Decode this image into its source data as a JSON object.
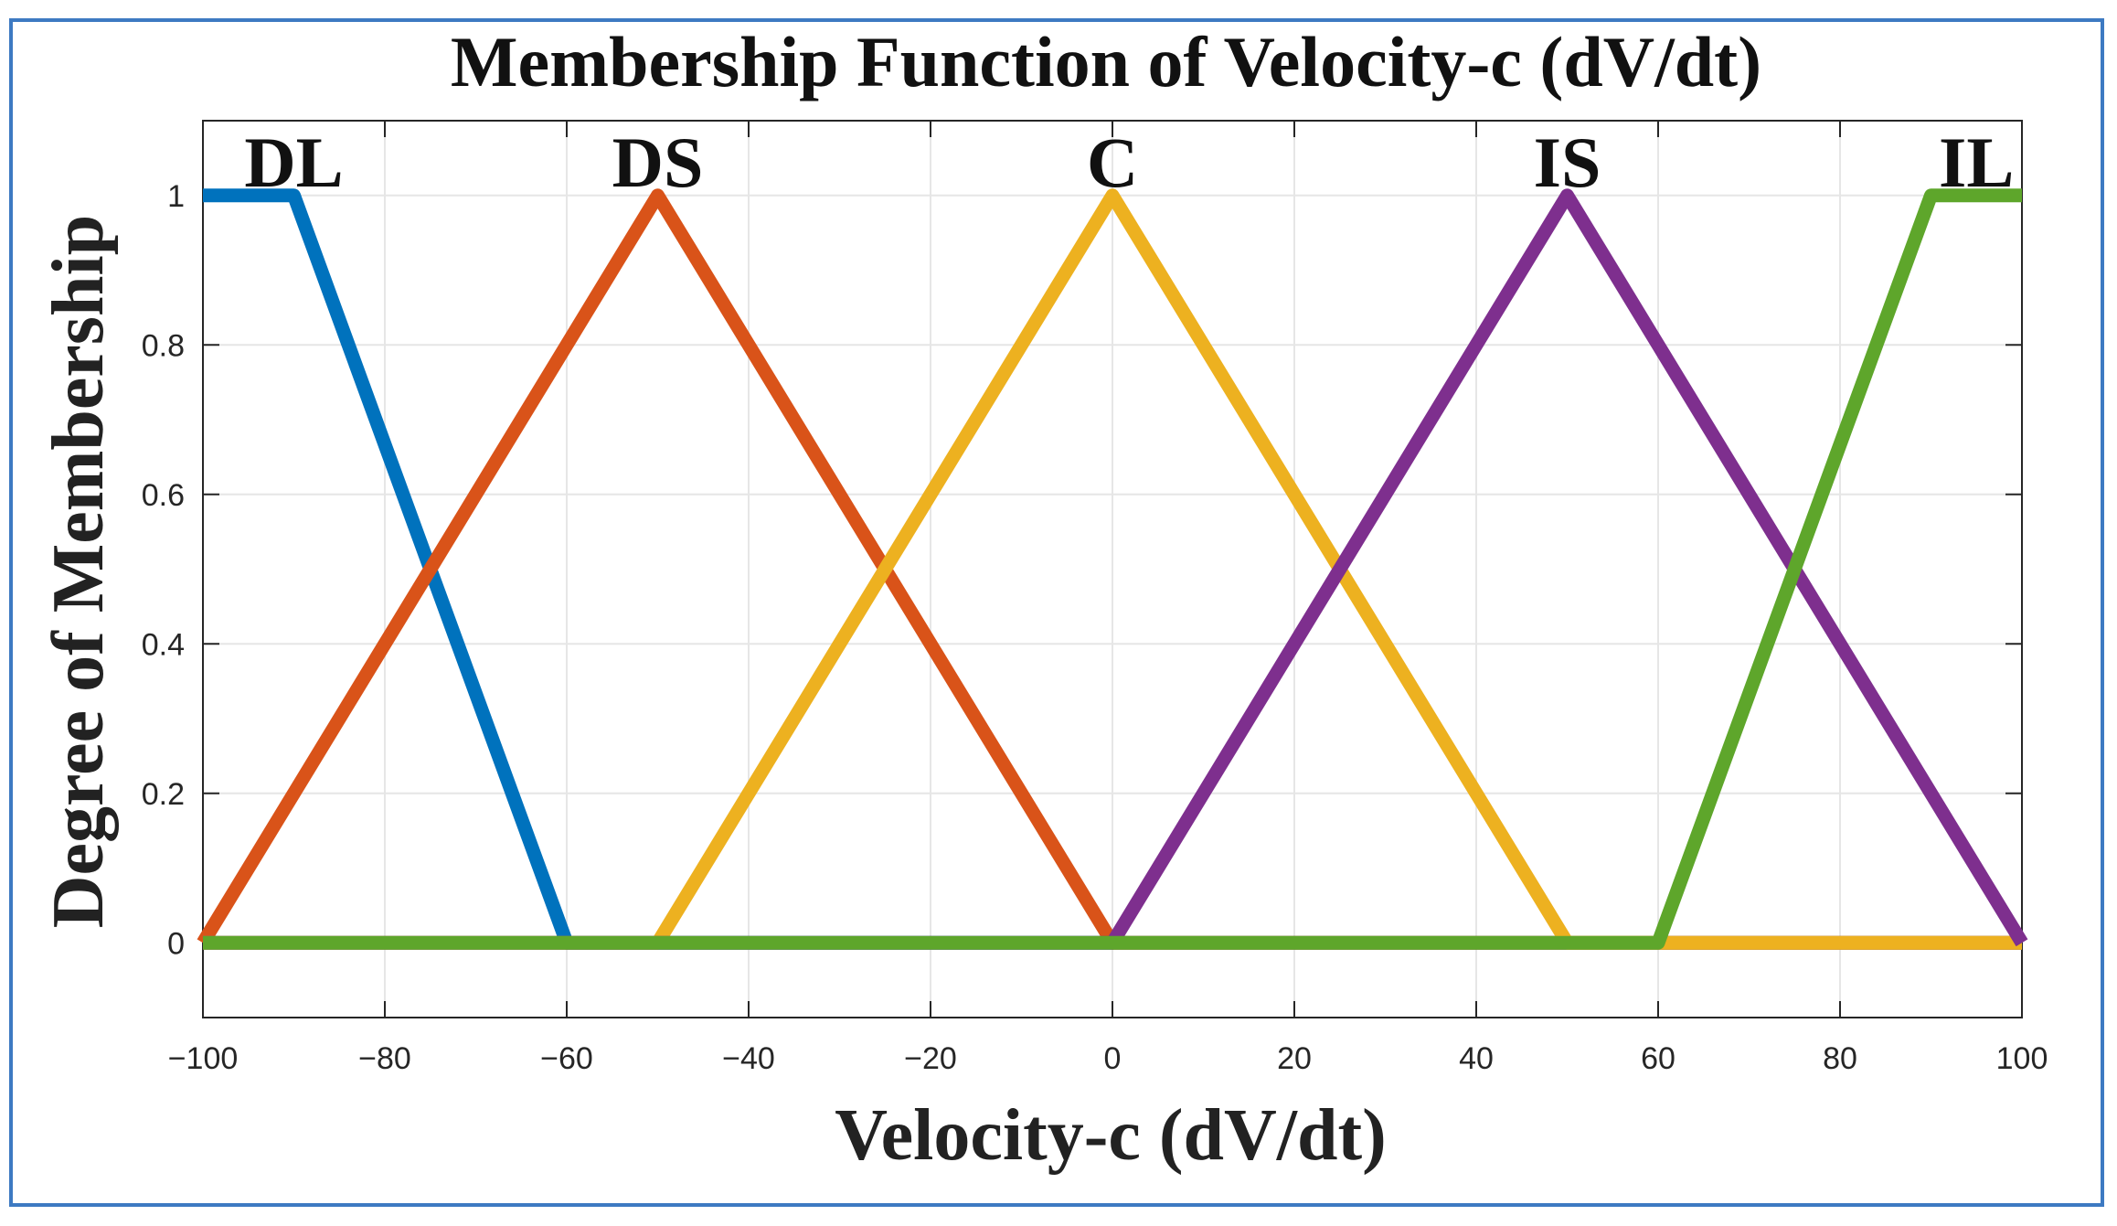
{
  "chart_data": {
    "type": "line",
    "title": "Membership Function of Velocity-c (dV/dt)",
    "xlabel": "Velocity-c (dV/dt)",
    "ylabel": "Degree of Membership",
    "xlim": [
      -100,
      100
    ],
    "ylim": [
      -0.1,
      1.1
    ],
    "xticks": [
      -100,
      -80,
      -60,
      -40,
      -20,
      0,
      20,
      40,
      60,
      80,
      100
    ],
    "xtick_labels": [
      "−100",
      "−80",
      "−60",
      "−40",
      "−20",
      "0",
      "20",
      "40",
      "60",
      "80",
      "100"
    ],
    "yticks": [
      0,
      0.2,
      0.4,
      0.6,
      0.8,
      1
    ],
    "ytick_labels": [
      "0",
      "0.2",
      "0.4",
      "0.6",
      "0.8",
      "1"
    ],
    "grid": true,
    "series": [
      {
        "name": "DL",
        "color": "#0072bd",
        "x": [
          -100,
          -90,
          -60,
          100
        ],
        "y": [
          1,
          1,
          0,
          0
        ],
        "label_at": [
          -90,
          1
        ]
      },
      {
        "name": "DS",
        "color": "#d95319",
        "x": [
          -100,
          -50,
          0,
          100
        ],
        "y": [
          0,
          1,
          0,
          0
        ],
        "label_at": [
          -50,
          1
        ]
      },
      {
        "name": "C",
        "color": "#edb120",
        "x": [
          -100,
          -50,
          0,
          50,
          100
        ],
        "y": [
          0,
          0,
          1,
          0,
          0
        ],
        "label_at": [
          0,
          1
        ]
      },
      {
        "name": "IS",
        "color": "#7e2f8e",
        "x": [
          -100,
          0,
          50,
          100
        ],
        "y": [
          0,
          0,
          1,
          0
        ],
        "label_at": [
          50,
          1
        ]
      },
      {
        "name": "IL",
        "color": "#5ea62b",
        "x": [
          -100,
          60,
          90,
          100
        ],
        "y": [
          0,
          0,
          1,
          1
        ],
        "label_at": [
          95,
          1
        ]
      }
    ]
  }
}
